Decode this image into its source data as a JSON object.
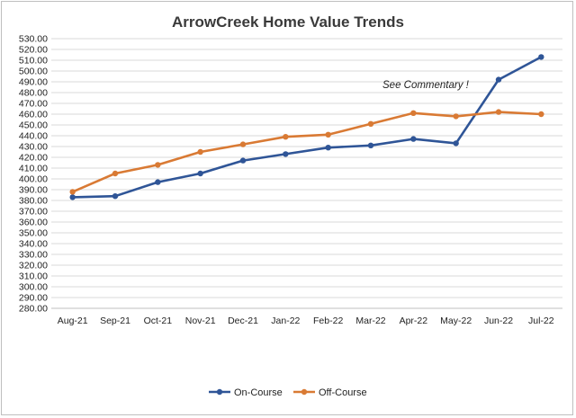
{
  "chart_data": {
    "type": "line",
    "title": "ArrowCreek Home Value Trends",
    "categories": [
      "Aug-21",
      "Sep-21",
      "Oct-21",
      "Nov-21",
      "Dec-21",
      "Jan-22",
      "Feb-22",
      "Mar-22",
      "Apr-22",
      "May-22",
      "Jun-22",
      "Jul-22"
    ],
    "series": [
      {
        "name": "On-Course",
        "color": "#2f5597",
        "values": [
          383,
          384,
          397,
          405,
          417,
          423,
          429,
          431,
          437,
          433,
          492,
          513
        ]
      },
      {
        "name": "Off-Course",
        "color": "#d97a34",
        "values": [
          388,
          405,
          413,
          425,
          432,
          439,
          441,
          451,
          461,
          458,
          462,
          460
        ]
      }
    ],
    "ylim": [
      280,
      530
    ],
    "ytick_labels": [
      "530.00",
      "520.00",
      "510.00",
      "500.00",
      "490.00",
      "480.00",
      "470.00",
      "460.00",
      "450.00",
      "440.00",
      "430.00",
      "420.00",
      "410.00",
      "400.00",
      "390.00",
      "380.00",
      "370.00",
      "360.00",
      "350.00",
      "340.00",
      "330.00",
      "320.00",
      "310.00",
      "300.00",
      "290.00",
      "280.00"
    ],
    "grid": true,
    "legend_position": "bottom",
    "annotation": "See Commentary !"
  }
}
